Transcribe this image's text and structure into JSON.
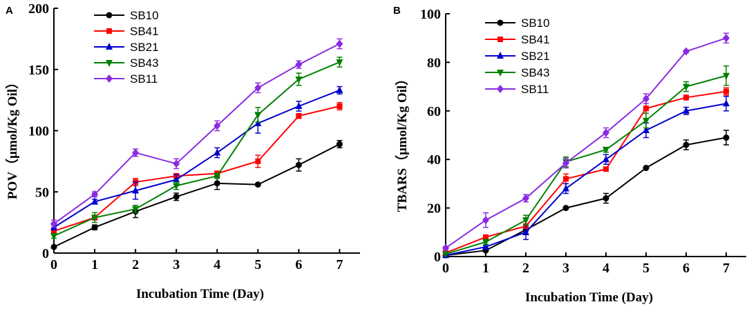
{
  "chart_data": [
    {
      "type": "line",
      "panel": "A",
      "title": "",
      "xlabel": "Incubation Time (Day)",
      "ylabel": "POV（μmol/Kg Oil）",
      "x": [
        0,
        1,
        2,
        3,
        4,
        5,
        6,
        7
      ],
      "xlim": [
        0,
        7.5
      ],
      "ylim": [
        0,
        200
      ],
      "xticks": [
        0,
        1,
        2,
        3,
        4,
        5,
        6,
        7
      ],
      "yticks": [
        0,
        50,
        100,
        150,
        200
      ],
      "grid": false,
      "legend_position": "top-left",
      "series": [
        {
          "name": "SB10",
          "color": "#000000",
          "marker": "circle",
          "values": [
            5,
            21,
            34,
            46,
            57,
            56,
            72,
            89
          ],
          "errors": [
            0,
            2,
            5,
            3,
            5,
            0,
            5,
            3
          ]
        },
        {
          "name": "SB41",
          "color": "#ff0000",
          "marker": "square",
          "values": [
            18,
            29,
            58,
            63,
            65,
            75,
            112,
            120
          ],
          "errors": [
            2,
            2,
            3,
            2,
            2,
            5,
            2,
            3
          ]
        },
        {
          "name": "SB21",
          "color": "#0000cc",
          "marker": "triangle-up",
          "values": [
            21,
            42,
            51,
            60,
            82,
            106,
            120,
            133
          ],
          "errors": [
            2,
            2,
            7,
            4,
            4,
            8,
            4,
            3
          ]
        },
        {
          "name": "SB43",
          "color": "#008000",
          "marker": "triangle-down",
          "values": [
            14,
            29,
            36,
            55,
            63,
            113,
            142,
            156
          ],
          "errors": [
            2,
            4,
            3,
            3,
            2,
            6,
            5,
            4
          ]
        },
        {
          "name": "SB11",
          "color": "#8a2be2",
          "marker": "diamond",
          "values": [
            24,
            48,
            82,
            73,
            104,
            135,
            154,
            171
          ],
          "errors": [
            3,
            2,
            3,
            4,
            4,
            4,
            3,
            4
          ]
        }
      ]
    },
    {
      "type": "line",
      "panel": "B",
      "title": "",
      "xlabel": "Incubation Time (Day)",
      "ylabel": "TBARS（μmol/Kg Oil）",
      "x": [
        0,
        1,
        2,
        3,
        4,
        5,
        6,
        7
      ],
      "xlim": [
        0,
        7.5
      ],
      "ylim": [
        0,
        100
      ],
      "xticks": [
        0,
        1,
        2,
        3,
        4,
        5,
        6,
        7
      ],
      "yticks": [
        0,
        20,
        40,
        60,
        80,
        100
      ],
      "grid": false,
      "legend_position": "top-left",
      "series": [
        {
          "name": "SB10",
          "color": "#000000",
          "marker": "circle",
          "values": [
            0.5,
            2.5,
            11,
            20,
            24,
            36.5,
            46,
            49
          ],
          "errors": [
            0,
            0.5,
            2,
            0,
            2,
            0,
            2,
            3
          ]
        },
        {
          "name": "SB41",
          "color": "#ff0000",
          "marker": "square",
          "values": [
            1.5,
            8,
            12.5,
            32,
            36,
            61,
            65.5,
            68
          ],
          "errors": [
            0,
            0.5,
            1,
            2,
            0.5,
            2,
            1,
            1.5
          ]
        },
        {
          "name": "SB21",
          "color": "#0000cc",
          "marker": "triangle-up",
          "values": [
            0.5,
            4,
            10,
            28,
            40,
            52,
            60,
            63
          ],
          "errors": [
            0,
            0.5,
            3,
            2,
            2,
            3,
            1.5,
            3
          ]
        },
        {
          "name": "SB43",
          "color": "#008000",
          "marker": "triangle-down",
          "values": [
            1,
            6,
            15,
            39,
            44,
            56,
            70,
            74.5
          ],
          "errors": [
            0,
            1,
            2,
            2,
            1,
            3,
            2,
            4
          ]
        },
        {
          "name": "SB11",
          "color": "#8a2be2",
          "marker": "diamond",
          "values": [
            3.5,
            15,
            24,
            38.5,
            51,
            65,
            84.5,
            90
          ],
          "errors": [
            0.5,
            3,
            1.5,
            2,
            2,
            2,
            0.5,
            2
          ]
        }
      ]
    }
  ]
}
